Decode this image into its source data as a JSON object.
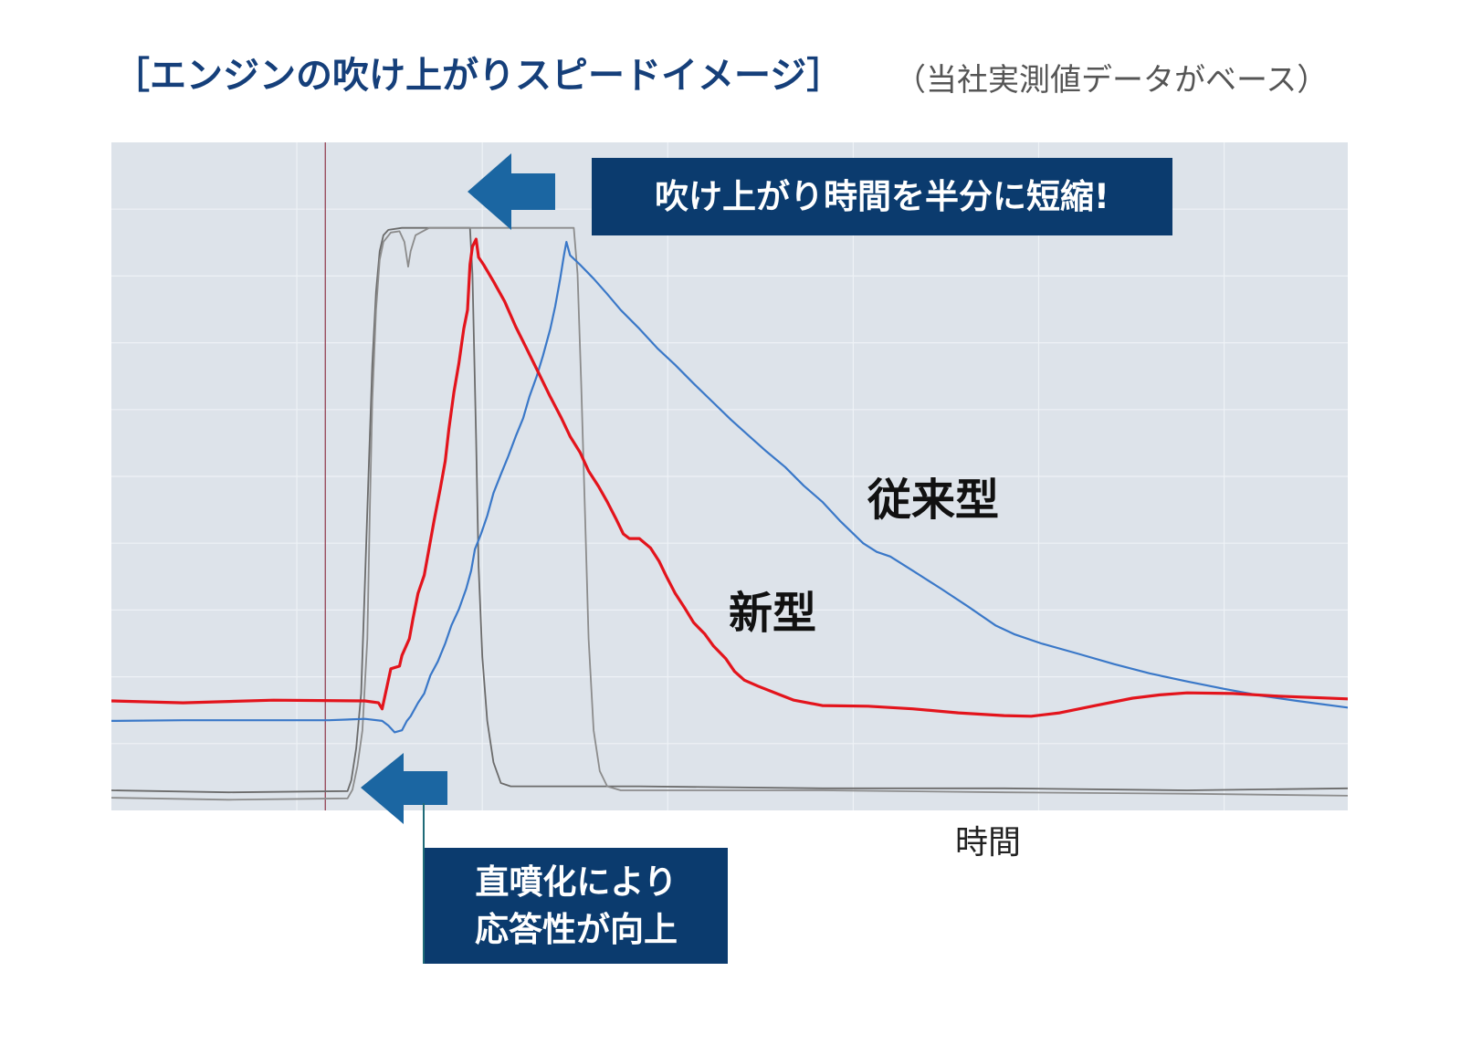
{
  "colors": {
    "title": "#153f7a",
    "subtitle": "#555555",
    "callout_box": "#0b3b6e",
    "arrow": "#1b66a2",
    "connector": "#1f6b78"
  },
  "callouts": {
    "top": {
      "text": "吹け上がり時間を半分に短縮!"
    },
    "bottom": {
      "lines": [
        "直噴化により",
        "応答性が向上"
      ]
    }
  },
  "chart_data": {
    "type": "line",
    "title": "［エンジンの吹け上がりスピードイメージ］",
    "subtitle": "（当社実測値データがベース）",
    "xlabel": "時間",
    "xlim": [
      0,
      100
    ],
    "ylim": [
      0,
      100
    ],
    "grid": true,
    "x_grid_step": 15,
    "y_grid_step": 10,
    "plot_background": "#dde3ea",
    "grid_color": "#eef2f6",
    "markers": [
      {
        "x": 17.3,
        "color": "#8e3447"
      }
    ],
    "series": [
      {
        "color": "#6b6b6b",
        "points": [
          [
            0,
            3.0
          ],
          [
            9.5,
            2.7
          ],
          [
            19.1,
            2.9
          ],
          [
            19.4,
            4.5
          ],
          [
            19.8,
            9.3
          ],
          [
            20.2,
            17.5
          ],
          [
            20.5,
            33.9
          ],
          [
            20.8,
            50.3
          ],
          [
            21.1,
            66.7
          ],
          [
            21.4,
            77.6
          ],
          [
            21.7,
            83.7
          ],
          [
            22.0,
            86.1
          ],
          [
            22.4,
            86.9
          ],
          [
            23.5,
            87.2
          ],
          [
            26.4,
            87.2
          ],
          [
            29.0,
            87.2
          ],
          [
            29.2,
            80.3
          ],
          [
            29.5,
            55.7
          ],
          [
            29.7,
            36.6
          ],
          [
            30.0,
            23.0
          ],
          [
            30.4,
            13.4
          ],
          [
            30.9,
            7.2
          ],
          [
            31.5,
            4.1
          ],
          [
            32.3,
            3.6
          ],
          [
            42.7,
            3.6
          ],
          [
            57.5,
            3.3
          ],
          [
            72.2,
            3.3
          ],
          [
            87.0,
            3.0
          ],
          [
            100,
            3.3
          ]
        ]
      },
      {
        "color": "#8c8c8c",
        "points": [
          [
            0,
            1.9
          ],
          [
            9.5,
            1.6
          ],
          [
            19.1,
            1.8
          ],
          [
            19.5,
            3.1
          ],
          [
            19.9,
            6.6
          ],
          [
            20.3,
            12.0
          ],
          [
            20.7,
            25.7
          ],
          [
            20.9,
            44.8
          ],
          [
            21.1,
            61.2
          ],
          [
            21.4,
            74.9
          ],
          [
            21.7,
            82.4
          ],
          [
            22.0,
            85.1
          ],
          [
            22.6,
            86.5
          ],
          [
            23.3,
            86.7
          ],
          [
            23.7,
            85.1
          ],
          [
            24.0,
            81.4
          ],
          [
            24.2,
            83.7
          ],
          [
            24.6,
            86.1
          ],
          [
            25.7,
            87.2
          ],
          [
            29.4,
            87.2
          ],
          [
            32.3,
            87.2
          ],
          [
            37.4,
            87.2
          ],
          [
            37.7,
            80.3
          ],
          [
            38.0,
            63.9
          ],
          [
            38.3,
            44.8
          ],
          [
            38.6,
            25.7
          ],
          [
            39.0,
            12.0
          ],
          [
            39.5,
            5.9
          ],
          [
            40.1,
            3.6
          ],
          [
            41.2,
            3.0
          ],
          [
            57.5,
            3.0
          ],
          [
            72.2,
            2.7
          ],
          [
            87.0,
            2.5
          ],
          [
            100,
            2.2
          ]
        ]
      },
      {
        "name": "従来型",
        "color": "#3a78c8",
        "points": [
          [
            0,
            13.4
          ],
          [
            5.8,
            13.5
          ],
          [
            13.1,
            13.5
          ],
          [
            17.6,
            13.5
          ],
          [
            20.5,
            13.7
          ],
          [
            21.9,
            13.4
          ],
          [
            22.4,
            12.7
          ],
          [
            22.9,
            11.7
          ],
          [
            23.5,
            12.0
          ],
          [
            23.9,
            13.4
          ],
          [
            24.2,
            14.1
          ],
          [
            24.8,
            16.1
          ],
          [
            25.3,
            17.5
          ],
          [
            25.8,
            20.2
          ],
          [
            26.4,
            22.3
          ],
          [
            27.0,
            25.0
          ],
          [
            27.5,
            27.7
          ],
          [
            28.1,
            30.1
          ],
          [
            28.7,
            33.2
          ],
          [
            29.1,
            35.9
          ],
          [
            29.4,
            39.1
          ],
          [
            29.9,
            41.4
          ],
          [
            30.4,
            44.1
          ],
          [
            30.9,
            47.5
          ],
          [
            31.5,
            50.3
          ],
          [
            32.1,
            53.0
          ],
          [
            32.7,
            56.0
          ],
          [
            33.3,
            58.7
          ],
          [
            33.8,
            61.9
          ],
          [
            34.4,
            65.0
          ],
          [
            34.9,
            68.0
          ],
          [
            35.5,
            72.1
          ],
          [
            35.9,
            75.5
          ],
          [
            36.3,
            79.6
          ],
          [
            36.6,
            83.1
          ],
          [
            36.8,
            85.1
          ],
          [
            37.1,
            83.1
          ],
          [
            37.9,
            81.7
          ],
          [
            39.0,
            79.6
          ],
          [
            40.1,
            77.3
          ],
          [
            41.2,
            74.9
          ],
          [
            42.7,
            72.1
          ],
          [
            44.2,
            69.1
          ],
          [
            45.6,
            66.7
          ],
          [
            47.1,
            63.9
          ],
          [
            48.6,
            61.2
          ],
          [
            50.1,
            58.5
          ],
          [
            51.6,
            56.0
          ],
          [
            53.0,
            53.7
          ],
          [
            54.5,
            51.4
          ],
          [
            56.0,
            48.6
          ],
          [
            57.5,
            46.2
          ],
          [
            58.9,
            43.4
          ],
          [
            60.8,
            40.0
          ],
          [
            61.9,
            38.7
          ],
          [
            63.0,
            38.0
          ],
          [
            64.8,
            35.9
          ],
          [
            67.1,
            33.2
          ],
          [
            69.3,
            30.5
          ],
          [
            71.5,
            27.7
          ],
          [
            73.0,
            26.4
          ],
          [
            75.2,
            25.0
          ],
          [
            78.1,
            23.5
          ],
          [
            81.1,
            21.9
          ],
          [
            84.0,
            20.5
          ],
          [
            87.0,
            19.3
          ],
          [
            90.0,
            18.2
          ],
          [
            92.9,
            17.2
          ],
          [
            95.9,
            16.4
          ],
          [
            100,
            15.4
          ]
        ]
      },
      {
        "name": "新型",
        "color": "#e3141c",
        "points": [
          [
            0,
            16.4
          ],
          [
            5.8,
            16.1
          ],
          [
            13.1,
            16.5
          ],
          [
            20.5,
            16.4
          ],
          [
            21.6,
            16.1
          ],
          [
            21.9,
            15.2
          ],
          [
            22.6,
            21.2
          ],
          [
            23.3,
            21.6
          ],
          [
            23.5,
            23.2
          ],
          [
            24.1,
            25.7
          ],
          [
            24.4,
            28.8
          ],
          [
            24.8,
            32.5
          ],
          [
            25.3,
            35.2
          ],
          [
            25.7,
            39.3
          ],
          [
            26.1,
            43.4
          ],
          [
            26.6,
            48.2
          ],
          [
            27.0,
            52.3
          ],
          [
            27.3,
            57.1
          ],
          [
            27.7,
            62.6
          ],
          [
            28.1,
            66.9
          ],
          [
            28.5,
            72.1
          ],
          [
            28.8,
            74.9
          ],
          [
            29.0,
            81.7
          ],
          [
            29.2,
            84.4
          ],
          [
            29.5,
            85.5
          ],
          [
            29.7,
            82.8
          ],
          [
            30.1,
            81.7
          ],
          [
            30.9,
            79.2
          ],
          [
            31.8,
            76.2
          ],
          [
            32.7,
            72.4
          ],
          [
            33.7,
            68.7
          ],
          [
            34.6,
            65.3
          ],
          [
            35.5,
            61.9
          ],
          [
            36.4,
            58.7
          ],
          [
            37.1,
            56.0
          ],
          [
            37.9,
            53.6
          ],
          [
            38.6,
            50.8
          ],
          [
            39.4,
            48.5
          ],
          [
            40.1,
            46.2
          ],
          [
            40.8,
            43.7
          ],
          [
            41.4,
            41.4
          ],
          [
            41.9,
            40.7
          ],
          [
            42.7,
            40.7
          ],
          [
            43.6,
            39.3
          ],
          [
            44.3,
            37.3
          ],
          [
            44.9,
            35.0
          ],
          [
            45.6,
            32.5
          ],
          [
            46.4,
            30.2
          ],
          [
            47.1,
            28.1
          ],
          [
            48.0,
            26.4
          ],
          [
            48.7,
            24.6
          ],
          [
            49.7,
            22.7
          ],
          [
            50.4,
            20.8
          ],
          [
            51.2,
            19.5
          ],
          [
            52.3,
            18.6
          ],
          [
            53.8,
            17.5
          ],
          [
            55.2,
            16.5
          ],
          [
            57.5,
            15.7
          ],
          [
            61.2,
            15.6
          ],
          [
            64.8,
            15.2
          ],
          [
            68.5,
            14.6
          ],
          [
            72.2,
            14.2
          ],
          [
            74.4,
            14.1
          ],
          [
            76.7,
            14.6
          ],
          [
            79.6,
            15.7
          ],
          [
            82.6,
            16.8
          ],
          [
            84.8,
            17.3
          ],
          [
            87.0,
            17.6
          ],
          [
            90.7,
            17.5
          ],
          [
            94.4,
            17.1
          ],
          [
            100,
            16.7
          ]
        ]
      }
    ]
  }
}
